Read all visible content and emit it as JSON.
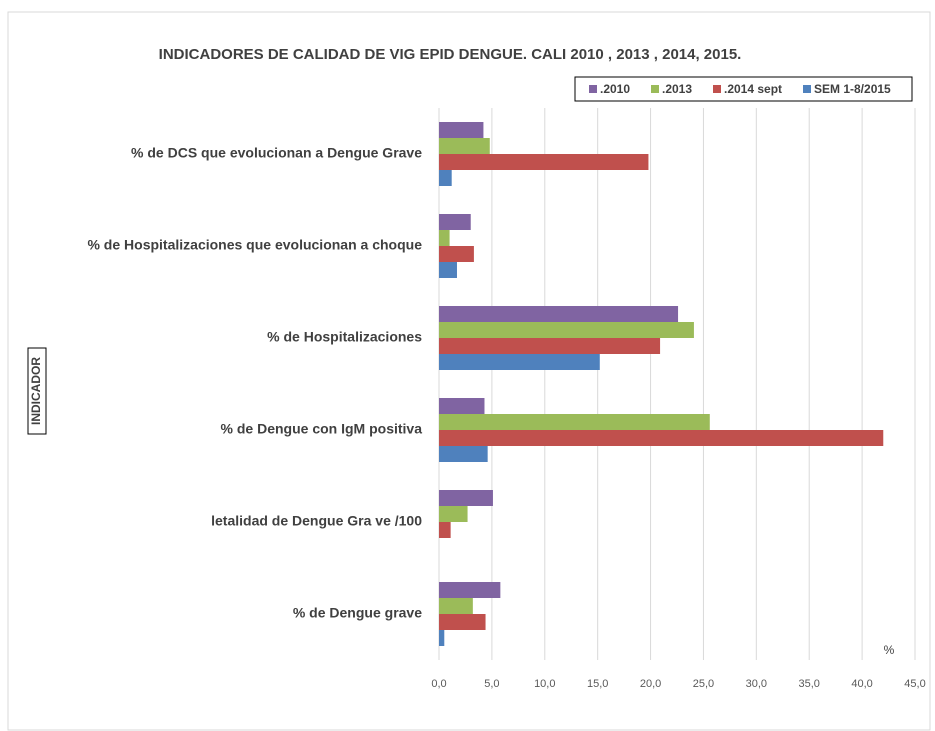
{
  "chart_data": {
    "type": "bar",
    "orientation": "horizontal",
    "title": "INDICADORES DE CALIDAD DE VIG EPID DENGUE. CALI 2010 , 2013 , 2014, 2015.",
    "ylabel": "INDICADOR",
    "xlabel": "%",
    "categories": [
      "% de DCS que evolucionan a Dengue Grave",
      "% de Hospitalizaciones que evolucionan a choque",
      "% de Hospitalizaciones",
      "% de Dengue con IgM positiva",
      "letalidad de Dengue Gra ve /100",
      "% de Dengue grave"
    ],
    "series": [
      {
        "name": ".2010",
        "color": "#8064a2",
        "values": [
          4.2,
          3.0,
          22.6,
          4.3,
          5.1,
          5.8
        ]
      },
      {
        "name": ".2013",
        "color": "#9bbb59",
        "values": [
          4.8,
          1.0,
          24.1,
          25.6,
          2.7,
          3.2
        ]
      },
      {
        "name": ".2014 sept",
        "color": "#c0504d",
        "values": [
          19.8,
          3.3,
          20.9,
          42.0,
          1.1,
          4.4
        ]
      },
      {
        "name": "SEM 1-8/2015",
        "color": "#4f81bd",
        "values": [
          1.2,
          1.7,
          15.2,
          4.6,
          null,
          0.5
        ]
      }
    ],
    "xlim": [
      0,
      45
    ],
    "xticks": [
      {
        "value": 0,
        "label": "0,0"
      },
      {
        "value": 5,
        "label": "5,0"
      },
      {
        "value": 10,
        "label": "10,0"
      },
      {
        "value": 15,
        "label": "15,0"
      },
      {
        "value": 20,
        "label": "20,0"
      },
      {
        "value": 25,
        "label": "25,0"
      },
      {
        "value": 30,
        "label": "30,0"
      },
      {
        "value": 35,
        "label": "35,0"
      },
      {
        "value": 40,
        "label": "40,0"
      },
      {
        "value": 45,
        "label": "45,0"
      }
    ],
    "grid": true,
    "legend": "top-right"
  }
}
